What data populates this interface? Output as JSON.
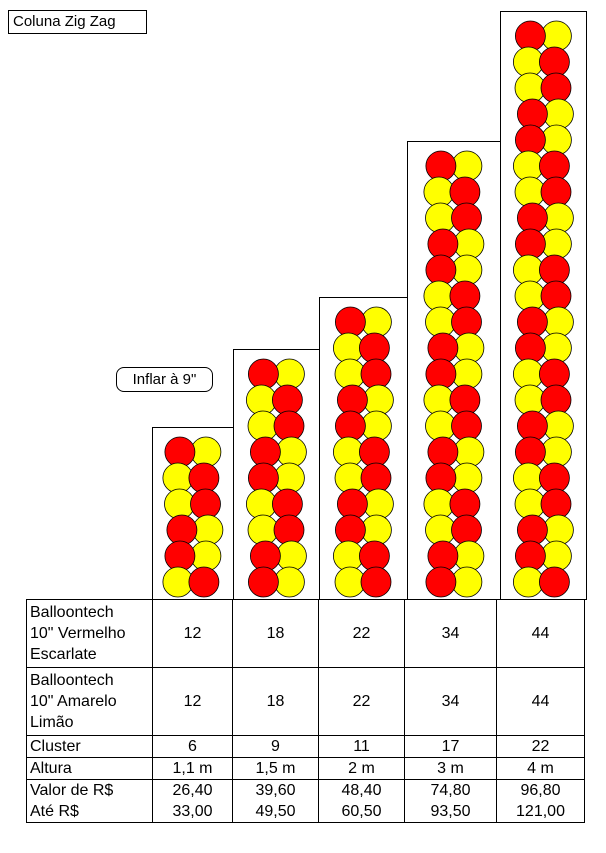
{
  "title": "Coluna Zig Zag",
  "note": "Inflar à 9\"",
  "colors": {
    "red": "#ff0000",
    "yellow": "#ffff00",
    "outline": "#000000"
  },
  "columns": [
    {
      "pairs": 6,
      "height": "1,1 m"
    },
    {
      "pairs": 9,
      "height": "1,5 m"
    },
    {
      "pairs": 11,
      "height": "2 m"
    },
    {
      "pairs": 17,
      "height": "3 m"
    },
    {
      "pairs": 22,
      "height": "4 m"
    }
  ],
  "table": {
    "rows": [
      {
        "label": [
          "Balloontech",
          "10\" Vermelho",
          "Escarlate"
        ],
        "values": [
          "12",
          "18",
          "22",
          "34",
          "44"
        ]
      },
      {
        "label": [
          "Balloontech",
          "10\" Amarelo",
          "Limão"
        ],
        "values": [
          "12",
          "18",
          "22",
          "34",
          "44"
        ]
      },
      {
        "label": [
          "Cluster"
        ],
        "values": [
          "6",
          "9",
          "11",
          "17",
          "22"
        ]
      },
      {
        "label": [
          "Altura"
        ],
        "values": [
          "1,1 m",
          "1,5 m",
          "2 m",
          "3 m",
          "4 m"
        ]
      },
      {
        "label": [
          "Valor de  R$",
          "Até R$"
        ],
        "values": [
          [
            "26,40",
            "33,00"
          ],
          [
            "39,60",
            "49,50"
          ],
          [
            "48,40",
            "60,50"
          ],
          [
            "74,80",
            "93,50"
          ],
          [
            "96,80",
            "121,00"
          ]
        ]
      }
    ]
  }
}
